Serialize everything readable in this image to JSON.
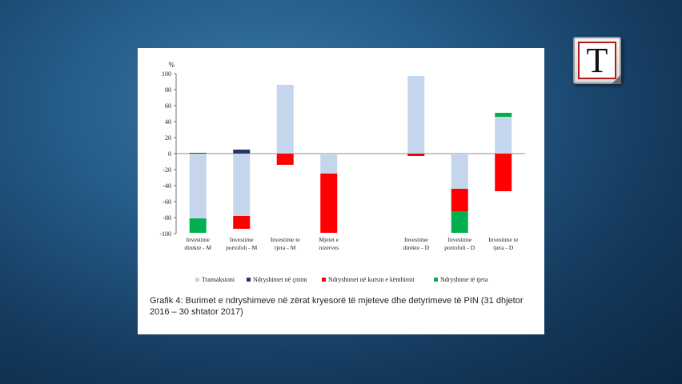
{
  "logo": {
    "letter": "T"
  },
  "caption": "Grafik 4: Burimet e ndryshimeve në zërat kryesorë të mjeteve dhe detyrimeve të PIN (31 dhjetor 2016 – 30 shtator 2017)",
  "chart_data": {
    "type": "bar",
    "stacked": true,
    "ylabel": "%",
    "ylim": [
      -100,
      100
    ],
    "yticks": [
      100,
      80,
      60,
      40,
      20,
      0,
      -20,
      -40,
      -60,
      -80,
      -100
    ],
    "categories": [
      [
        "Investime",
        "direkte - M"
      ],
      [
        "Investime",
        "portofoli - M"
      ],
      [
        "Investime te",
        "tjera - M"
      ],
      [
        "Mjetet e",
        "rezerves"
      ],
      [
        "",
        ""
      ],
      [
        "Investime",
        "direkte - D"
      ],
      [
        "Investime",
        "portofoli - D"
      ],
      [
        "Investime te",
        "tjera - D"
      ]
    ],
    "series": [
      {
        "name": "Transaksioni",
        "color": "#c5d5ec",
        "values": [
          -81,
          -78,
          86,
          -25,
          0,
          97,
          -44,
          46
        ]
      },
      {
        "name": "Ndryshimet në çmim",
        "color": "#1f3864",
        "values": [
          1,
          5,
          0,
          0,
          0,
          0,
          0,
          0
        ]
      },
      {
        "name": "Ndryshimet në kursin e këmbimit",
        "color": "#ff0000",
        "values": [
          0,
          -16,
          -14,
          -74,
          0,
          -3,
          -28,
          -47
        ]
      },
      {
        "name": "Ndryshime të tjera",
        "color": "#00b050",
        "values": [
          -18,
          0,
          0,
          0,
          0,
          0,
          -27,
          5
        ]
      }
    ],
    "grid": false,
    "legend_position": "bottom"
  }
}
